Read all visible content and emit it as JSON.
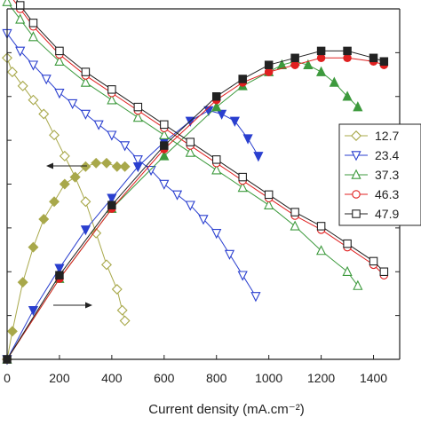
{
  "chart_data": {
    "type": "line",
    "title": "",
    "xlabel": "Current density (mA.cm⁻²)",
    "ylabel": "",
    "xlim": [
      0,
      1500
    ],
    "ylim_left": [
      0,
      1.0
    ],
    "ylim_right": [
      0,
      100
    ],
    "x_ticks": [
      0,
      200,
      400,
      600,
      800,
      1000,
      1200,
      1400
    ],
    "x_tick_labels": [
      "0",
      "200",
      "400",
      "600",
      "800",
      "1000",
      "1200",
      "1400"
    ],
    "grid": false,
    "legend_position": "right",
    "annotations": [
      {
        "type": "arrow",
        "direction": "left",
        "points_to": "left-axis-curves"
      },
      {
        "type": "arrow",
        "direction": "right",
        "points_to": "right-axis-curves"
      }
    ],
    "series": [
      {
        "name": "12.7",
        "color": "#a8a84a",
        "marker": "diamond",
        "polarization": [
          [
            0,
            0.86
          ],
          [
            20,
            0.82
          ],
          [
            60,
            0.78
          ],
          [
            100,
            0.74
          ],
          [
            140,
            0.7
          ],
          [
            180,
            0.64
          ],
          [
            220,
            0.58
          ],
          [
            260,
            0.52
          ],
          [
            300,
            0.45
          ],
          [
            340,
            0.36
          ],
          [
            380,
            0.27
          ],
          [
            420,
            0.2
          ],
          [
            440,
            0.14
          ],
          [
            450,
            0.11
          ]
        ],
        "power": [
          [
            0,
            0
          ],
          [
            20,
            8
          ],
          [
            60,
            22
          ],
          [
            100,
            32
          ],
          [
            140,
            40
          ],
          [
            180,
            45
          ],
          [
            220,
            50
          ],
          [
            260,
            52
          ],
          [
            300,
            55
          ],
          [
            340,
            56
          ],
          [
            380,
            56
          ],
          [
            420,
            55
          ],
          [
            450,
            55
          ]
        ]
      },
      {
        "name": "23.4",
        "color": "#2a3fcf",
        "marker": "triangle-down",
        "polarization": [
          [
            0,
            0.93
          ],
          [
            50,
            0.88
          ],
          [
            100,
            0.84
          ],
          [
            150,
            0.8
          ],
          [
            200,
            0.76
          ],
          [
            250,
            0.73
          ],
          [
            300,
            0.7
          ],
          [
            350,
            0.67
          ],
          [
            400,
            0.64
          ],
          [
            450,
            0.61
          ],
          [
            500,
            0.57
          ],
          [
            550,
            0.54
          ],
          [
            600,
            0.5
          ],
          [
            650,
            0.47
          ],
          [
            700,
            0.44
          ],
          [
            750,
            0.4
          ],
          [
            800,
            0.36
          ],
          [
            850,
            0.3
          ],
          [
            900,
            0.24
          ],
          [
            950,
            0.18
          ]
        ],
        "power": [
          [
            0,
            0
          ],
          [
            100,
            14
          ],
          [
            200,
            26
          ],
          [
            300,
            37
          ],
          [
            400,
            46
          ],
          [
            500,
            55
          ],
          [
            600,
            62
          ],
          [
            700,
            68
          ],
          [
            770,
            71
          ],
          [
            820,
            70
          ],
          [
            870,
            68
          ],
          [
            920,
            63
          ],
          [
            960,
            58
          ]
        ]
      },
      {
        "name": "37.3",
        "color": "#3d9a3d",
        "marker": "triangle-up",
        "polarization": [
          [
            0,
            1.02
          ],
          [
            50,
            0.97
          ],
          [
            100,
            0.92
          ],
          [
            200,
            0.85
          ],
          [
            300,
            0.79
          ],
          [
            400,
            0.74
          ],
          [
            500,
            0.69
          ],
          [
            600,
            0.64
          ],
          [
            700,
            0.59
          ],
          [
            800,
            0.54
          ],
          [
            900,
            0.49
          ],
          [
            1000,
            0.44
          ],
          [
            1100,
            0.38
          ],
          [
            1200,
            0.31
          ],
          [
            1300,
            0.25
          ],
          [
            1340,
            0.21
          ]
        ],
        "power": [
          [
            0,
            0
          ],
          [
            200,
            23
          ],
          [
            400,
            43
          ],
          [
            600,
            58
          ],
          [
            800,
            72
          ],
          [
            900,
            78
          ],
          [
            1000,
            82
          ],
          [
            1050,
            84
          ],
          [
            1100,
            85
          ],
          [
            1150,
            84
          ],
          [
            1200,
            82
          ],
          [
            1250,
            79
          ],
          [
            1300,
            75
          ],
          [
            1340,
            72
          ]
        ]
      },
      {
        "name": "46.3",
        "color": "#e02020",
        "marker": "circle",
        "polarization": [
          [
            0,
            1.05
          ],
          [
            50,
            1.0
          ],
          [
            100,
            0.95
          ],
          [
            200,
            0.87
          ],
          [
            300,
            0.81
          ],
          [
            400,
            0.76
          ],
          [
            500,
            0.71
          ],
          [
            600,
            0.66
          ],
          [
            700,
            0.61
          ],
          [
            800,
            0.56
          ],
          [
            900,
            0.51
          ],
          [
            1000,
            0.46
          ],
          [
            1100,
            0.41
          ],
          [
            1200,
            0.37
          ],
          [
            1300,
            0.32
          ],
          [
            1400,
            0.27
          ],
          [
            1440,
            0.24
          ]
        ],
        "power": [
          [
            0,
            0
          ],
          [
            200,
            23
          ],
          [
            400,
            43
          ],
          [
            600,
            60
          ],
          [
            800,
            74
          ],
          [
            900,
            79
          ],
          [
            1000,
            82
          ],
          [
            1100,
            84
          ],
          [
            1200,
            86
          ],
          [
            1300,
            86
          ],
          [
            1400,
            85
          ],
          [
            1440,
            84
          ]
        ]
      },
      {
        "name": "47.9",
        "color": "#222222",
        "marker": "square",
        "polarization": [
          [
            0,
            1.07
          ],
          [
            50,
            1.01
          ],
          [
            100,
            0.96
          ],
          [
            200,
            0.88
          ],
          [
            300,
            0.82
          ],
          [
            400,
            0.77
          ],
          [
            500,
            0.72
          ],
          [
            600,
            0.67
          ],
          [
            700,
            0.62
          ],
          [
            800,
            0.57
          ],
          [
            900,
            0.52
          ],
          [
            1000,
            0.47
          ],
          [
            1100,
            0.42
          ],
          [
            1200,
            0.38
          ],
          [
            1300,
            0.33
          ],
          [
            1400,
            0.28
          ],
          [
            1440,
            0.25
          ]
        ],
        "power": [
          [
            0,
            0
          ],
          [
            200,
            24
          ],
          [
            400,
            44
          ],
          [
            600,
            61
          ],
          [
            800,
            75
          ],
          [
            900,
            80
          ],
          [
            1000,
            84
          ],
          [
            1100,
            86
          ],
          [
            1200,
            88
          ],
          [
            1300,
            88
          ],
          [
            1400,
            86
          ],
          [
            1440,
            85
          ]
        ]
      }
    ]
  }
}
